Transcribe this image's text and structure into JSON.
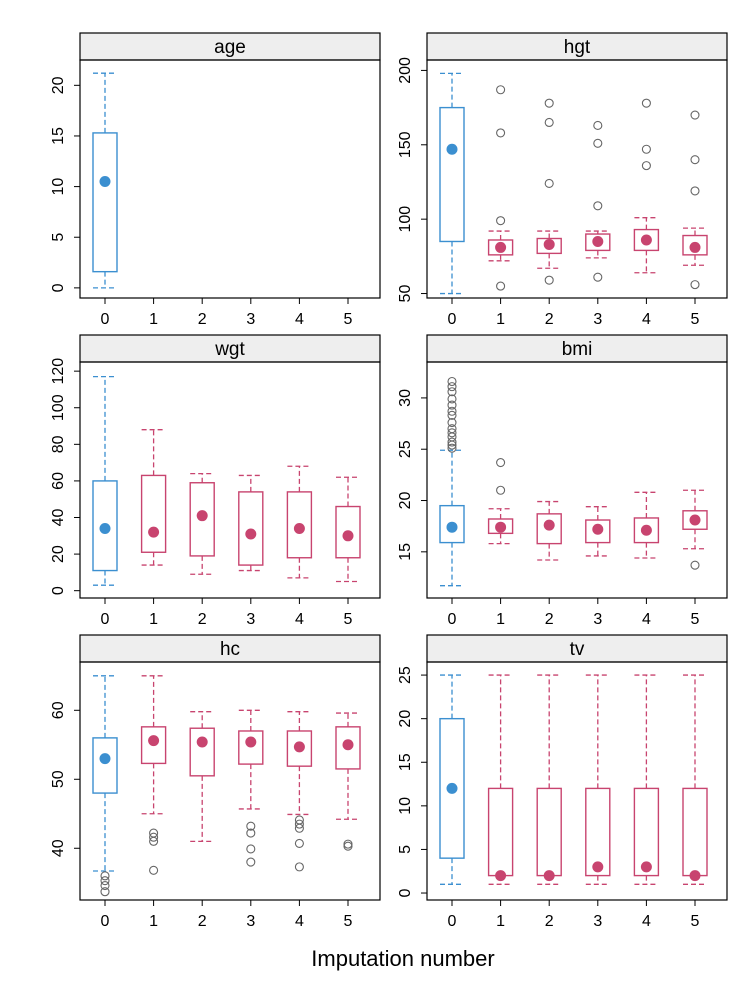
{
  "xlabel": "Imputation number",
  "colors": {
    "observed": "#3b8fd0",
    "imputed": "#c8446f",
    "outlier": "#666666",
    "strip": "#eeeeee",
    "frame": "#000000"
  },
  "chart_data": [
    {
      "type": "box",
      "title": "age",
      "x_ticks": [
        "0",
        "1",
        "2",
        "3",
        "4",
        "5"
      ],
      "ylim": [
        -1,
        22.5
      ],
      "yticks": [
        0,
        5,
        10,
        15,
        20
      ],
      "boxes": [
        {
          "group": 0,
          "kind": "observed",
          "min": 0,
          "q1": 1.6,
          "median": 10.5,
          "q3": 15.3,
          "max": 21.2,
          "outliers": []
        }
      ]
    },
    {
      "type": "box",
      "title": "hgt",
      "x_ticks": [
        "0",
        "1",
        "2",
        "3",
        "4",
        "5"
      ],
      "ylim": [
        47,
        207
      ],
      "yticks": [
        50,
        100,
        150,
        200
      ],
      "boxes": [
        {
          "group": 0,
          "kind": "observed",
          "min": 50,
          "q1": 85,
          "median": 147,
          "q3": 175,
          "max": 198,
          "outliers": []
        },
        {
          "group": 1,
          "kind": "imputed",
          "min": 72,
          "q1": 76,
          "median": 81,
          "q3": 86,
          "max": 92,
          "outliers": [
            55,
            99,
            158,
            187
          ]
        },
        {
          "group": 2,
          "kind": "imputed",
          "min": 67,
          "q1": 77,
          "median": 83,
          "q3": 87,
          "max": 92,
          "outliers": [
            59,
            124,
            165,
            178
          ]
        },
        {
          "group": 3,
          "kind": "imputed",
          "min": 74,
          "q1": 79,
          "median": 85,
          "q3": 90,
          "max": 92,
          "outliers": [
            61,
            109,
            151,
            163
          ]
        },
        {
          "group": 4,
          "kind": "imputed",
          "min": 64,
          "q1": 79,
          "median": 86,
          "q3": 93,
          "max": 101,
          "outliers": [
            136,
            147,
            178
          ]
        },
        {
          "group": 5,
          "kind": "imputed",
          "min": 69,
          "q1": 76,
          "median": 81,
          "q3": 89,
          "max": 94,
          "outliers": [
            56,
            119,
            140,
            170
          ]
        }
      ]
    },
    {
      "type": "box",
      "title": "wgt",
      "x_ticks": [
        "0",
        "1",
        "2",
        "3",
        "4",
        "5"
      ],
      "ylim": [
        -4,
        125
      ],
      "yticks": [
        0,
        20,
        40,
        60,
        80,
        100,
        120
      ],
      "boxes": [
        {
          "group": 0,
          "kind": "observed",
          "min": 3,
          "q1": 11,
          "median": 34,
          "q3": 60,
          "max": 117,
          "outliers": []
        },
        {
          "group": 1,
          "kind": "imputed",
          "min": 14,
          "q1": 21,
          "median": 32,
          "q3": 63,
          "max": 88,
          "outliers": []
        },
        {
          "group": 2,
          "kind": "imputed",
          "min": 9,
          "q1": 19,
          "median": 41,
          "q3": 59,
          "max": 64,
          "outliers": []
        },
        {
          "group": 3,
          "kind": "imputed",
          "min": 11,
          "q1": 14,
          "median": 31,
          "q3": 54,
          "max": 63,
          "outliers": []
        },
        {
          "group": 4,
          "kind": "imputed",
          "min": 7,
          "q1": 18,
          "median": 34,
          "q3": 54,
          "max": 68,
          "outliers": []
        },
        {
          "group": 5,
          "kind": "imputed",
          "min": 5,
          "q1": 18,
          "median": 30,
          "q3": 46,
          "max": 62,
          "outliers": []
        }
      ]
    },
    {
      "type": "box",
      "title": "bmi",
      "x_ticks": [
        "0",
        "1",
        "2",
        "3",
        "4",
        "5"
      ],
      "ylim": [
        10.5,
        33.5
      ],
      "yticks": [
        15,
        20,
        25,
        30
      ],
      "boxes": [
        {
          "group": 0,
          "kind": "observed",
          "min": 11.7,
          "q1": 15.9,
          "median": 17.4,
          "q3": 19.5,
          "max": 24.9,
          "outliers": [
            25.1,
            25.4,
            25.7,
            26.2,
            26.6,
            27.0,
            27.6,
            28.3,
            28.7,
            29.3,
            29.9,
            30.6,
            31.1,
            31.6
          ]
        },
        {
          "group": 1,
          "kind": "imputed",
          "min": 15.8,
          "q1": 16.8,
          "median": 17.4,
          "q3": 18.2,
          "max": 19.2,
          "outliers": [
            21.0,
            23.7
          ]
        },
        {
          "group": 2,
          "kind": "imputed",
          "min": 14.2,
          "q1": 15.8,
          "median": 17.6,
          "q3": 18.7,
          "max": 19.9,
          "outliers": []
        },
        {
          "group": 3,
          "kind": "imputed",
          "min": 14.6,
          "q1": 15.9,
          "median": 17.2,
          "q3": 18.1,
          "max": 19.4,
          "outliers": []
        },
        {
          "group": 4,
          "kind": "imputed",
          "min": 14.4,
          "q1": 15.9,
          "median": 17.1,
          "q3": 18.3,
          "max": 20.8,
          "outliers": []
        },
        {
          "group": 5,
          "kind": "imputed",
          "min": 15.3,
          "q1": 17.2,
          "median": 18.1,
          "q3": 19.0,
          "max": 21.0,
          "outliers": [
            13.7
          ]
        }
      ]
    },
    {
      "type": "box",
      "title": "hc",
      "x_ticks": [
        "0",
        "1",
        "2",
        "3",
        "4",
        "5"
      ],
      "ylim": [
        32.5,
        67
      ],
      "yticks": [
        40,
        50,
        60
      ],
      "boxes": [
        {
          "group": 0,
          "kind": "observed",
          "min": 36.7,
          "q1": 48.0,
          "median": 53.0,
          "q3": 56.0,
          "max": 65.0,
          "outliers": [
            33.7,
            34.6,
            35.3,
            36.0
          ]
        },
        {
          "group": 1,
          "kind": "imputed",
          "min": 45.0,
          "q1": 52.3,
          "median": 55.6,
          "q3": 57.6,
          "max": 65.0,
          "outliers": [
            36.8,
            41.0,
            41.6,
            42.2
          ]
        },
        {
          "group": 2,
          "kind": "imputed",
          "min": 41.0,
          "q1": 50.5,
          "median": 55.4,
          "q3": 57.4,
          "max": 59.8,
          "outliers": []
        },
        {
          "group": 3,
          "kind": "imputed",
          "min": 45.7,
          "q1": 52.2,
          "median": 55.4,
          "q3": 57.0,
          "max": 60.0,
          "outliers": [
            38.0,
            39.9,
            42.2,
            43.2
          ]
        },
        {
          "group": 4,
          "kind": "imputed",
          "min": 44.9,
          "q1": 51.9,
          "median": 54.7,
          "q3": 57.0,
          "max": 59.8,
          "outliers": [
            37.3,
            40.7,
            42.9,
            43.5,
            44.1
          ]
        },
        {
          "group": 5,
          "kind": "imputed",
          "min": 44.2,
          "q1": 51.5,
          "median": 55.0,
          "q3": 57.6,
          "max": 59.6,
          "outliers": [
            40.3,
            40.6
          ]
        }
      ]
    },
    {
      "type": "box",
      "title": "tv",
      "x_ticks": [
        "0",
        "1",
        "2",
        "3",
        "4",
        "5"
      ],
      "ylim": [
        -0.8,
        26.5
      ],
      "yticks": [
        0,
        5,
        10,
        15,
        20,
        25
      ],
      "boxes": [
        {
          "group": 0,
          "kind": "observed",
          "min": 1,
          "q1": 4,
          "median": 12,
          "q3": 20,
          "max": 25,
          "outliers": []
        },
        {
          "group": 1,
          "kind": "imputed",
          "min": 1,
          "q1": 2,
          "median": 2,
          "q3": 12,
          "max": 25,
          "outliers": []
        },
        {
          "group": 2,
          "kind": "imputed",
          "min": 1,
          "q1": 2,
          "median": 2,
          "q3": 12,
          "max": 25,
          "outliers": []
        },
        {
          "group": 3,
          "kind": "imputed",
          "min": 1,
          "q1": 2,
          "median": 3,
          "q3": 12,
          "max": 25,
          "outliers": []
        },
        {
          "group": 4,
          "kind": "imputed",
          "min": 1,
          "q1": 2,
          "median": 3,
          "q3": 12,
          "max": 25,
          "outliers": []
        },
        {
          "group": 5,
          "kind": "imputed",
          "min": 1,
          "q1": 2,
          "median": 2,
          "q3": 12,
          "max": 25,
          "outliers": []
        }
      ]
    }
  ]
}
